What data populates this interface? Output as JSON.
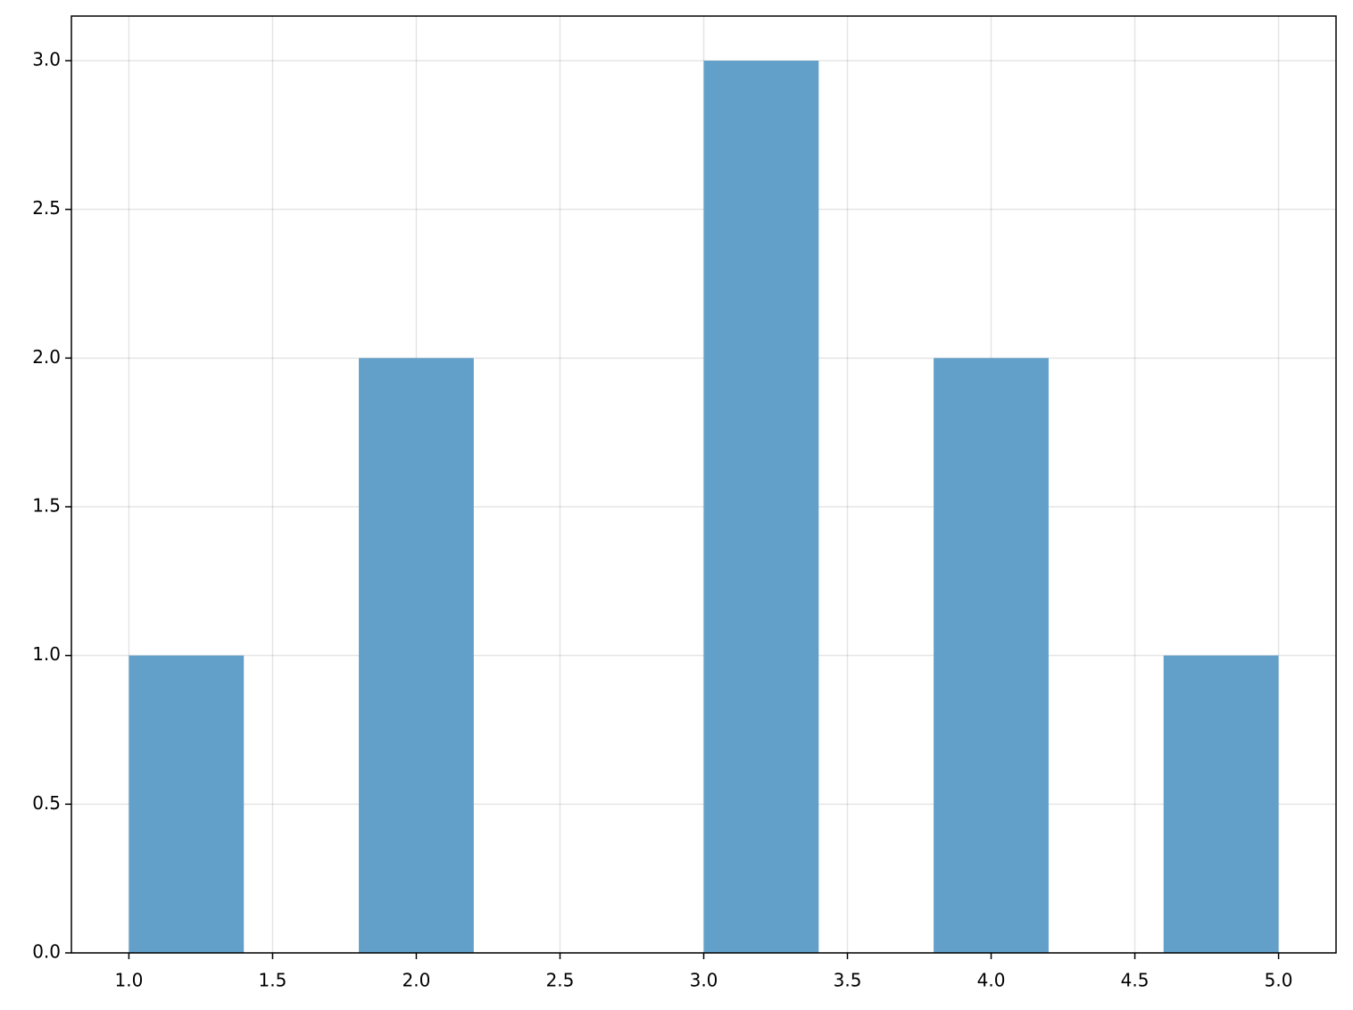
{
  "chart_data": {
    "type": "histogram",
    "bins": [
      1.0,
      1.4,
      1.8,
      2.2,
      2.6,
      3.0,
      3.4,
      3.8,
      4.2,
      4.6,
      5.0
    ],
    "values": [
      1,
      0,
      2,
      0,
      0,
      3,
      0,
      2,
      0,
      1
    ],
    "color": "#62a0ca",
    "xlim": [
      0.8,
      5.2
    ],
    "xticks": [
      {
        "value": 1,
        "label": "1.0"
      },
      1.5,
      {
        "value": 2,
        "label": "2.0"
      },
      2.5,
      {
        "value": 3,
        "label": "3.0"
      },
      3.5,
      {
        "value": 4,
        "label": "4.0"
      },
      4.5,
      {
        "value": 5,
        "label": "5.0"
      }
    ],
    "ylim": [
      0,
      3.15
    ],
    "yticks": [
      {
        "value": 0,
        "label": "0.0"
      },
      0.5,
      {
        "value": 1,
        "label": "1.0"
      },
      1.5,
      {
        "value": 2,
        "label": "2.0"
      },
      2.5,
      {
        "value": 3,
        "label": "3.0"
      }
    ],
    "grid": true
  }
}
